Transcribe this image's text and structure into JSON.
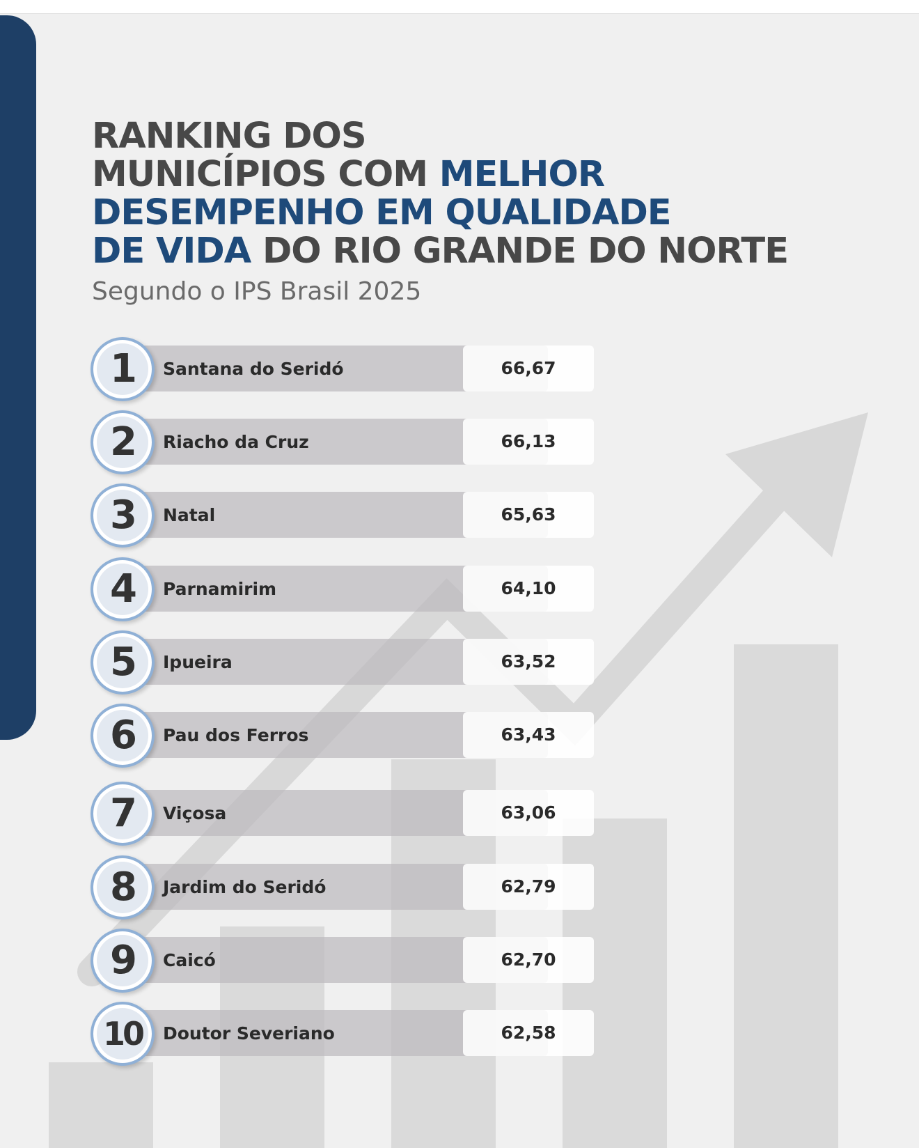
{
  "header": {
    "title_line1": "RANKING DOS",
    "title_line2a": "MUNICÍPIOS COM ",
    "title_line2b": "MELHOR",
    "title_line3": "DESEMPENHO EM QUALIDADE",
    "title_line4a": "DE VIDA",
    "title_line4b": " DO RIO GRANDE DO NORTE",
    "subtitle": "Segundo o IPS Brasil 2025"
  },
  "colors": {
    "accent_blue": "#1e4a7a",
    "sidebar_navy": "#1e3f66",
    "title_gray": "#484848",
    "badge_ring": "#8fb0d6"
  },
  "ranking": [
    {
      "rank": "1",
      "name": "Santana do Seridó",
      "score": "66,67"
    },
    {
      "rank": "2",
      "name": "Riacho da Cruz",
      "score": "66,13"
    },
    {
      "rank": "3",
      "name": "Natal",
      "score": "65,63"
    },
    {
      "rank": "4",
      "name": "Parnamirim",
      "score": "64,10"
    },
    {
      "rank": "5",
      "name": "Ipueira",
      "score": "63,52"
    },
    {
      "rank": "6",
      "name": "Pau dos Ferros",
      "score": "63,43"
    },
    {
      "rank": "7",
      "name": "Viçosa",
      "score": "63,06"
    },
    {
      "rank": "8",
      "name": "Jardim do Seridó",
      "score": "62,79"
    },
    {
      "rank": "9",
      "name": "Caicó",
      "score": "62,70"
    },
    {
      "rank": "10",
      "name": "Doutor Severiano",
      "score": "62,58"
    }
  ],
  "decorations": {
    "background_icon": "growth-chart-arrow-icon"
  }
}
